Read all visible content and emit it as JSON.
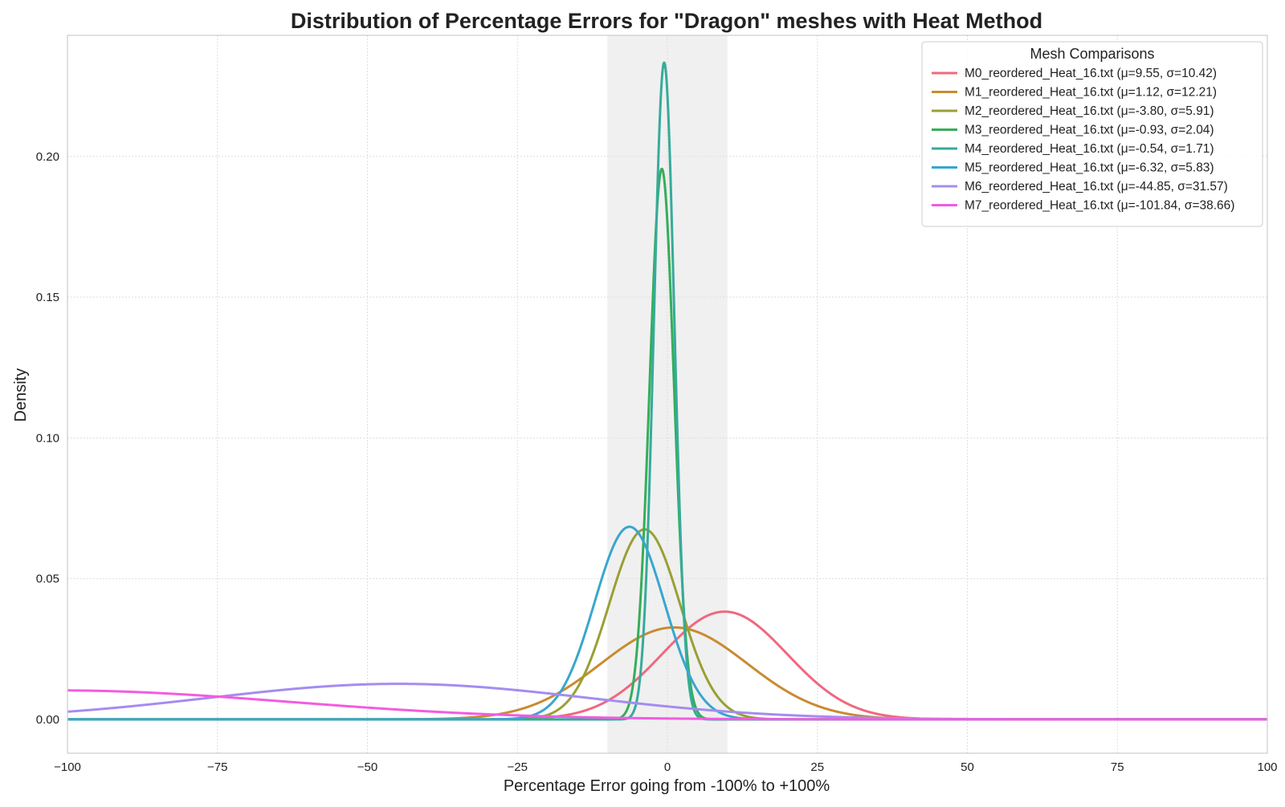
{
  "chart_data": {
    "type": "line",
    "title": "Distribution of Percentage Errors for \"Dragon\" meshes with Heat Method",
    "xlabel": "Percentage Error going from -100% to +100%",
    "ylabel": "Density",
    "xlim": [
      -100,
      100
    ],
    "ylim": [
      -0.012,
      0.243
    ],
    "xticks": [
      -100,
      -75,
      -50,
      -25,
      0,
      25,
      50,
      75,
      100
    ],
    "xtick_labels": [
      "−100",
      "−75",
      "−50",
      "−25",
      "0",
      "25",
      "50",
      "75",
      "100"
    ],
    "yticks": [
      0.0,
      0.05,
      0.1,
      0.15,
      0.2
    ],
    "ytick_labels": [
      "0.00",
      "0.05",
      "0.10",
      "0.15",
      "0.20"
    ],
    "grid": true,
    "shaded_band": {
      "x_from": -10,
      "x_to": 10,
      "color": "#f0f0f0"
    },
    "legend": {
      "title": "Mesh Comparisons",
      "location": "top-right"
    },
    "series": [
      {
        "name": "M0_reordered_Heat_16.txt",
        "label": "M0_reordered_Heat_16.txt (μ=9.55, σ=10.42)",
        "mu": 9.55,
        "sigma": 10.42,
        "color": "#f0687f"
      },
      {
        "name": "M1_reordered_Heat_16.txt",
        "label": "M1_reordered_Heat_16.txt (μ=1.12, σ=12.21)",
        "mu": 1.12,
        "sigma": 12.21,
        "color": "#c98b30"
      },
      {
        "name": "M2_reordered_Heat_16.txt",
        "label": "M2_reordered_Heat_16.txt (μ=-3.80, σ=5.91)",
        "mu": -3.8,
        "sigma": 5.91,
        "color": "#99a033"
      },
      {
        "name": "M3_reordered_Heat_16.txt",
        "label": "M3_reordered_Heat_16.txt (μ=-0.93, σ=2.04)",
        "mu": -0.93,
        "sigma": 2.04,
        "color": "#35ad5a"
      },
      {
        "name": "M4_reordered_Heat_16.txt",
        "label": "M4_reordered_Heat_16.txt (μ=-0.54, σ=1.71)",
        "mu": -0.54,
        "sigma": 1.71,
        "color": "#36ab9a"
      },
      {
        "name": "M5_reordered_Heat_16.txt",
        "label": "M5_reordered_Heat_16.txt (μ=-6.32, σ=5.83)",
        "mu": -6.32,
        "sigma": 5.83,
        "color": "#38a6cf"
      },
      {
        "name": "M6_reordered_Heat_16.txt",
        "label": "M6_reordered_Heat_16.txt (μ=-44.85, σ=31.57)",
        "mu": -44.85,
        "sigma": 31.57,
        "color": "#a48cf0"
      },
      {
        "name": "M7_reordered_Heat_16.txt",
        "label": "M7_reordered_Heat_16.txt (μ=-101.84, σ=38.66)",
        "mu": -101.84,
        "sigma": 38.66,
        "color": "#f25ce0"
      }
    ]
  }
}
